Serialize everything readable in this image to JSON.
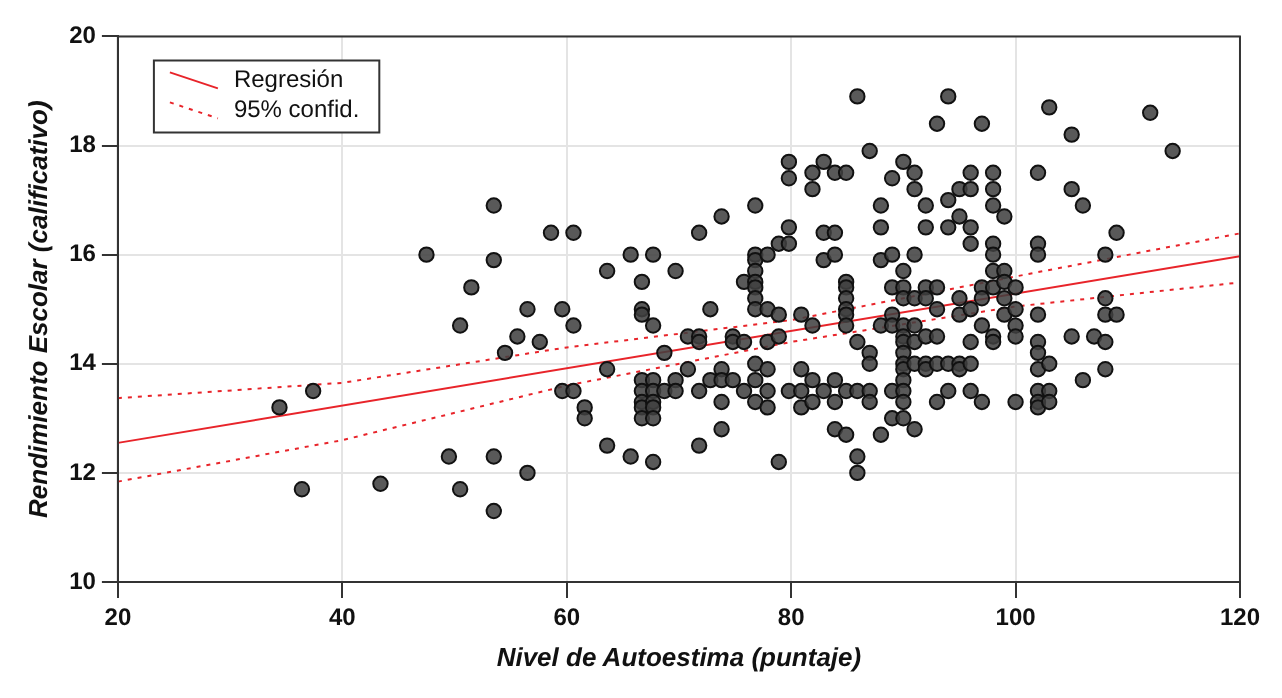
{
  "chart_data": {
    "type": "scatter",
    "xlabel": "Nivel de Autoestima (puntaje)",
    "ylabel": "Rendimiento Escolar (calificativo)",
    "xlim": [
      20,
      120
    ],
    "xticks": [
      20,
      40,
      60,
      80,
      100,
      120
    ],
    "ylim": [
      10,
      20
    ],
    "yticks": [
      10,
      12,
      14,
      16,
      18,
      20
    ],
    "grid": true,
    "legend": "top left",
    "series": [
      {
        "marker": "circle",
        "color": "#404040",
        "x": [
          34.4,
          36.4,
          37.4,
          43.4,
          47.5,
          49.5,
          50.5,
          50.5,
          51.5,
          53.5,
          53.5,
          53.5,
          53.5,
          54.5,
          55.6,
          56.5,
          56.5,
          57.6,
          58.6,
          59.6,
          59.6,
          60.6,
          60.6,
          60.6,
          61.6,
          61.6,
          63.6,
          63.6,
          63.6,
          65.7,
          65.7,
          66.7,
          66.7,
          66.7,
          66.7,
          66.7,
          66.7,
          66.7,
          66.7,
          67.7,
          67.7,
          67.7,
          67.7,
          67.7,
          67.7,
          67.7,
          67.7,
          68.7,
          68.7,
          69.7,
          69.7,
          69.7,
          70.8,
          70.8,
          71.8,
          71.8,
          71.8,
          71.8,
          71.8,
          72.8,
          72.8,
          73.8,
          73.8,
          73.8,
          73.8,
          73.8,
          74.8,
          74.8,
          74.8,
          75.8,
          75.8,
          75.8,
          76.8,
          76.8,
          76.8,
          76.8,
          76.8,
          76.8,
          76.8,
          76.8,
          76.8,
          76.8,
          76.8,
          77.9,
          77.9,
          77.9,
          77.9,
          77.9,
          77.9,
          78.9,
          78.9,
          78.9,
          78.9,
          79.8,
          79.8,
          79.8,
          79.8,
          79.8,
          80.9,
          80.9,
          80.9,
          80.9,
          81.9,
          81.9,
          81.9,
          81.9,
          81.9,
          82.9,
          82.9,
          82.9,
          82.9,
          83.9,
          83.9,
          83.9,
          83.9,
          83.9,
          83.9,
          84.9,
          84.9,
          84.9,
          84.9,
          84.9,
          84.9,
          84.9,
          84.9,
          84.9,
          85.9,
          85.9,
          85.9,
          85.9,
          85.9,
          87,
          87,
          87,
          87,
          87,
          88,
          88,
          88,
          88,
          88,
          89,
          89,
          89,
          89,
          89,
          89,
          89,
          90,
          90,
          90,
          90,
          90,
          90,
          90,
          90,
          90,
          90,
          90,
          90,
          90,
          90,
          91,
          91,
          91,
          91,
          91,
          91,
          91,
          91,
          92,
          92,
          92,
          92,
          92,
          92,
          92,
          93,
          93,
          93,
          93,
          93,
          93,
          94,
          94,
          94,
          94,
          94,
          95,
          95,
          95,
          95,
          95,
          95,
          96,
          96,
          96,
          96,
          96,
          96,
          96,
          96,
          97,
          97,
          97,
          97,
          97,
          98,
          98,
          98,
          98,
          98,
          98,
          98,
          98,
          98,
          99,
          99,
          99,
          99,
          99,
          100,
          100,
          100,
          100,
          100,
          102,
          102,
          102,
          102,
          102,
          102,
          102,
          102,
          102,
          102,
          103,
          103,
          103,
          103,
          105,
          105,
          105,
          106,
          106,
          107,
          108,
          108,
          108,
          108,
          108,
          109,
          109,
          112,
          114
        ],
        "values": [
          13.2,
          11.7,
          13.5,
          11.8,
          16.0,
          12.3,
          11.7,
          14.7,
          15.4,
          16.9,
          15.9,
          12.3,
          11.3,
          14.2,
          14.5,
          15.0,
          12.0,
          14.4,
          16.4,
          15.0,
          13.5,
          16.4,
          14.7,
          13.5,
          13.2,
          13.0,
          15.7,
          13.9,
          12.5,
          16.0,
          12.3,
          15.5,
          15.0,
          14.9,
          13.7,
          13.5,
          13.3,
          13.2,
          13.0,
          16.0,
          14.7,
          13.7,
          13.5,
          13.3,
          13.2,
          13.0,
          12.2,
          14.2,
          13.5,
          15.7,
          13.7,
          13.5,
          14.5,
          13.9,
          16.4,
          14.5,
          14.4,
          13.5,
          12.5,
          15.0,
          13.7,
          16.7,
          13.9,
          13.7,
          13.3,
          12.8,
          14.5,
          14.4,
          13.7,
          15.5,
          14.4,
          13.5,
          16.9,
          16.0,
          15.9,
          15.7,
          15.5,
          15.4,
          15.2,
          15.0,
          14.0,
          13.7,
          13.3,
          16.0,
          15.0,
          14.4,
          13.9,
          13.5,
          13.2,
          16.2,
          14.9,
          14.5,
          12.2,
          17.7,
          17.4,
          16.5,
          16.2,
          13.5,
          14.9,
          13.9,
          13.5,
          13.2,
          17.5,
          17.2,
          14.7,
          13.7,
          13.3,
          17.7,
          16.4,
          15.9,
          13.5,
          17.5,
          16.4,
          16.0,
          13.7,
          13.3,
          12.8,
          17.5,
          15.5,
          15.4,
          15.2,
          15.0,
          14.9,
          14.7,
          13.5,
          12.7,
          18.9,
          14.4,
          13.5,
          12.3,
          12.0,
          17.9,
          14.2,
          14.0,
          13.5,
          13.3,
          16.9,
          16.5,
          15.9,
          14.7,
          12.7,
          17.4,
          16.0,
          15.4,
          14.9,
          14.7,
          13.5,
          13.0,
          17.7,
          15.7,
          15.4,
          15.2,
          14.7,
          14.5,
          14.4,
          14.2,
          14.0,
          13.9,
          13.7,
          13.5,
          13.3,
          13.0,
          17.5,
          17.2,
          16.0,
          15.2,
          14.7,
          14.4,
          14.0,
          12.8,
          16.9,
          16.5,
          15.4,
          15.2,
          14.5,
          14.0,
          13.9,
          18.4,
          15.4,
          15.0,
          14.5,
          14.0,
          13.3,
          18.9,
          17.0,
          16.5,
          14.0,
          13.5,
          17.2,
          16.7,
          15.2,
          14.9,
          14.0,
          13.9,
          17.5,
          17.2,
          16.5,
          16.2,
          15.0,
          14.4,
          14.0,
          13.5,
          18.4,
          15.4,
          15.2,
          14.7,
          13.3,
          17.5,
          17.2,
          16.9,
          16.2,
          16.0,
          15.7,
          15.4,
          14.5,
          14.4,
          16.7,
          15.7,
          15.5,
          15.2,
          14.9,
          15.4,
          15.0,
          14.7,
          14.5,
          13.3,
          17.5,
          16.2,
          16.0,
          14.9,
          14.4,
          14.2,
          13.9,
          13.5,
          13.3,
          13.2,
          18.7,
          14.0,
          13.5,
          13.3,
          18.2,
          17.2,
          14.5,
          16.9,
          13.7,
          14.5,
          16.0,
          15.2,
          14.9,
          14.4,
          13.9,
          16.4,
          14.9,
          18.6,
          17.9
        ]
      },
      {
        "type": "line",
        "name": "Regresión",
        "color": "#e8242a",
        "line_style": "solid",
        "marker": "none",
        "x": [
          20,
          120
        ],
        "values": [
          12.55,
          15.97
        ]
      },
      {
        "type": "line",
        "name": "95% confid.",
        "color": "#e8242a",
        "line_style": "dotted",
        "marker": "none",
        "x": [
          20,
          40,
          60,
          80,
          100,
          120
        ],
        "values": [
          13.37,
          13.65,
          14.3,
          14.8,
          15.6,
          16.39
        ]
      },
      {
        "type": "line",
        "color": "#e8242a",
        "line_style": "dotted",
        "marker": "none",
        "x": [
          20,
          40,
          60,
          80,
          100,
          120
        ],
        "values": [
          11.84,
          12.6,
          13.6,
          14.4,
          15.05,
          15.49
        ]
      }
    ]
  }
}
